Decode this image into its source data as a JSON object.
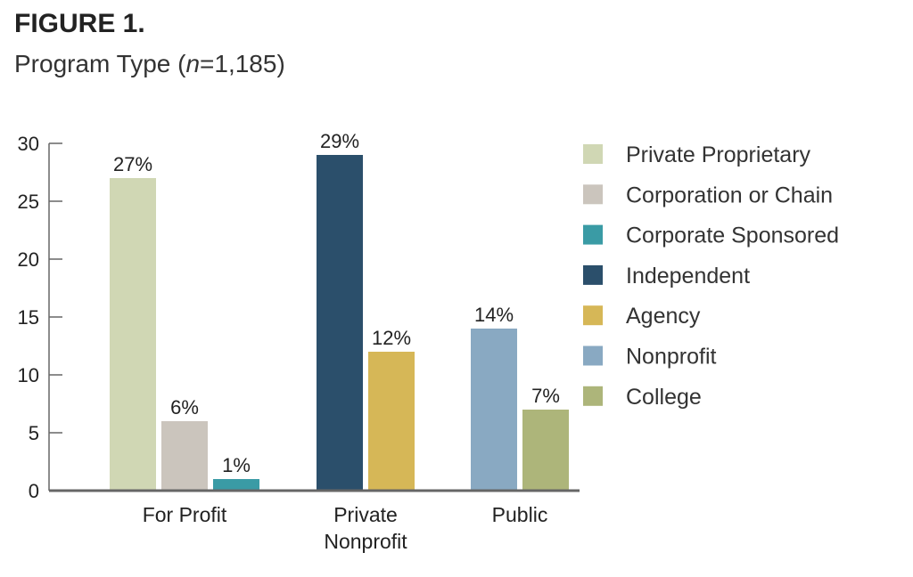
{
  "figure_label": "FIGURE 1.",
  "title_prefix": "Program Type (",
  "title_n": "n",
  "title_suffix": "=1,185)",
  "colors": {
    "private_proprietary": "#d0d7b4",
    "corporation_or_chain": "#cbc5bd",
    "corporate_sponsored": "#3a9ba5",
    "independent": "#2b4f6b",
    "agency": "#d6b757",
    "nonprofit": "#89a9c2",
    "college": "#adb57a",
    "axis": "#666666"
  },
  "chart_data": {
    "type": "bar",
    "ylim": [
      0,
      30
    ],
    "yticks": [
      0,
      5,
      10,
      15,
      20,
      25,
      30
    ],
    "grid": false,
    "legend_position": "right",
    "groups": [
      {
        "label_lines": [
          "For Profit"
        ],
        "bars": [
          {
            "series": "Private Proprietary",
            "value": 27,
            "label": "27%",
            "color_key": "private_proprietary"
          },
          {
            "series": "Corporation or Chain",
            "value": 6,
            "label": "6%",
            "color_key": "corporation_or_chain"
          },
          {
            "series": "Corporate Sponsored",
            "value": 1,
            "label": "1%",
            "color_key": "corporate_sponsored"
          }
        ]
      },
      {
        "label_lines": [
          "Private",
          "Nonprofit"
        ],
        "bars": [
          {
            "series": "Independent",
            "value": 29,
            "label": "29%",
            "color_key": "independent"
          },
          {
            "series": "Agency",
            "value": 12,
            "label": "12%",
            "color_key": "agency"
          }
        ]
      },
      {
        "label_lines": [
          "Public"
        ],
        "bars": [
          {
            "series": "Nonprofit",
            "value": 14,
            "label": "14%",
            "color_key": "nonprofit"
          },
          {
            "series": "College",
            "value": 7,
            "label": "7%",
            "color_key": "college"
          }
        ]
      }
    ],
    "legend": [
      {
        "label": "Private Proprietary",
        "color_key": "private_proprietary"
      },
      {
        "label": "Corporation or Chain",
        "color_key": "corporation_or_chain"
      },
      {
        "label": "Corporate Sponsored",
        "color_key": "corporate_sponsored"
      },
      {
        "label": "Independent",
        "color_key": "independent"
      },
      {
        "label": "Agency",
        "color_key": "agency"
      },
      {
        "label": "Nonprofit",
        "color_key": "nonprofit"
      },
      {
        "label": "College",
        "color_key": "college"
      }
    ]
  }
}
